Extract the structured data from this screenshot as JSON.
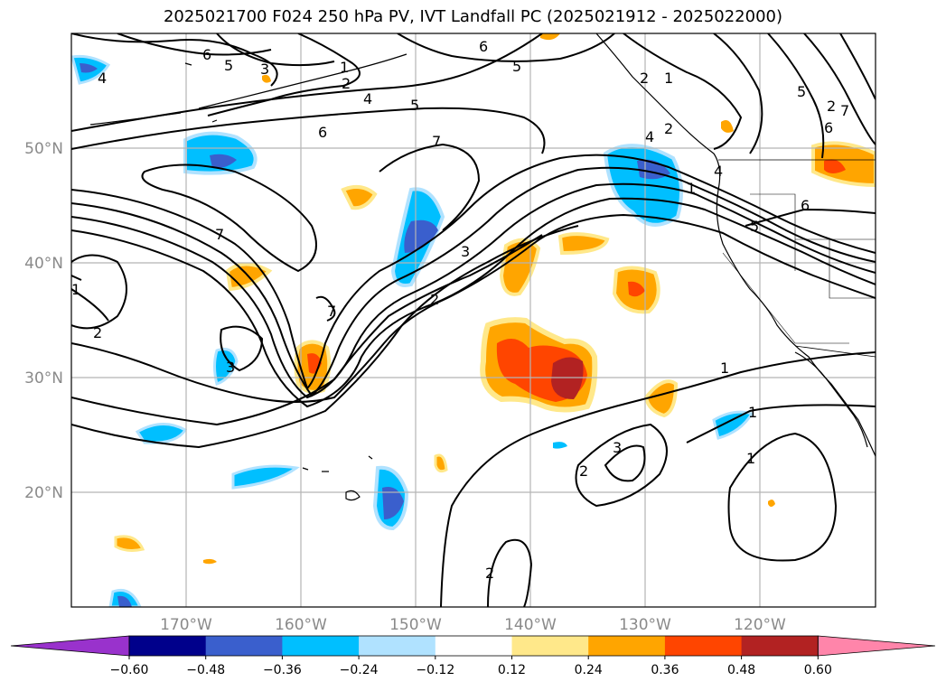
{
  "title": "2025021700 F024 250 hPa PV, IVT Landfall PC (2025021912 - 2025022000)",
  "map": {
    "lon_range": [
      -180,
      -110
    ],
    "lat_range": [
      10,
      60
    ],
    "longitude_labels": [
      "170°W",
      "160°W",
      "150°W",
      "140°W",
      "130°W",
      "120°W"
    ],
    "latitude_labels": [
      "50°N",
      "40°N",
      "30°N",
      "20°N"
    ],
    "gridlines": true
  },
  "colorbar": {
    "ticks": [
      "−0.60",
      "−0.48",
      "−0.36",
      "−0.24",
      "−0.12",
      "0.12",
      "0.24",
      "0.36",
      "0.48",
      "0.60"
    ],
    "colors": [
      "#9932cc",
      "#00008b",
      "#3a5fcd",
      "#00bfff",
      "#b0e2ff",
      "#ffffff",
      "#ffe88a",
      "#ffa500",
      "#ff4500",
      "#b22222",
      "#ff85aa"
    ],
    "extend": "both"
  },
  "contour_labels": [
    "6",
    "5",
    "3",
    "1",
    "2",
    "4",
    "5",
    "6",
    "7",
    "6",
    "5",
    "2",
    "1",
    "4",
    "7",
    "7",
    "2",
    "3",
    "2",
    "1",
    "5",
    "4",
    "5",
    "6",
    "6",
    "1",
    "2",
    "3",
    "1",
    "1",
    "3",
    "2",
    "2",
    "1",
    "4",
    "7",
    "2"
  ]
}
